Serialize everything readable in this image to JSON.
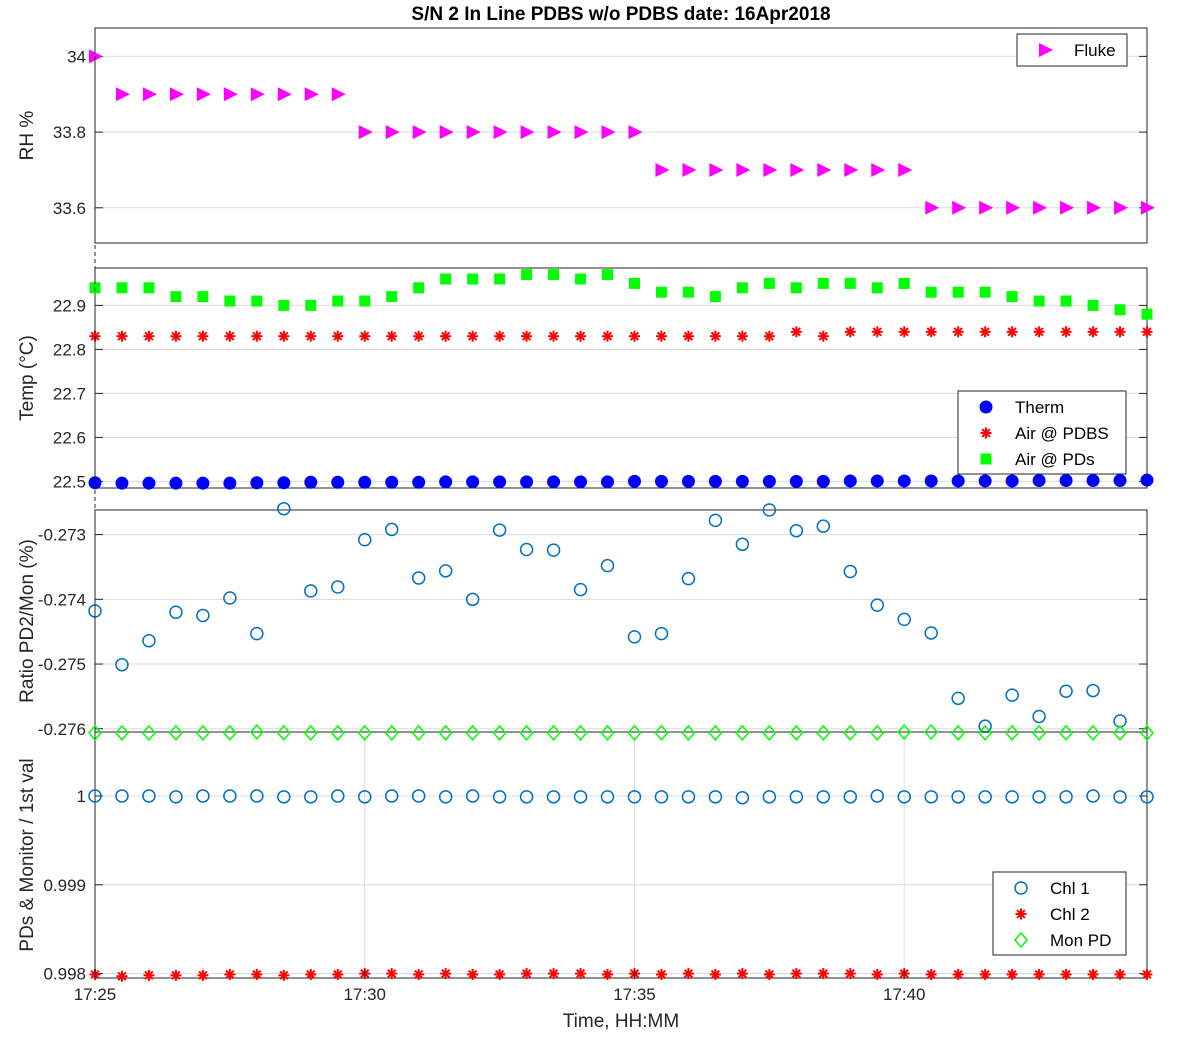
{
  "chart_data": {
    "title": "S/N 2 In Line PDBS w/o PDBS date: 16Apr2018",
    "xlabel": "Time, HH:MM",
    "time_minutes": [
      1045,
      1045.5,
      1046,
      1046.5,
      1047,
      1047.5,
      1048,
      1048.5,
      1049,
      1049.5,
      1050,
      1050.5,
      1051,
      1051.5,
      1052,
      1052.5,
      1053,
      1053.5,
      1054,
      1054.5,
      1055,
      1055.5,
      1056,
      1056.5,
      1057,
      1057.5,
      1058,
      1058.5,
      1059,
      1059.5,
      1060,
      1060.5,
      1061,
      1061.5,
      1062,
      1062.5,
      1063,
      1063.5,
      1064,
      1064.5
    ],
    "xticks": [
      {
        "t": 1045,
        "label": "17:25"
      },
      {
        "t": 1050,
        "label": "17:30"
      },
      {
        "t": 1055,
        "label": "17:35"
      },
      {
        "t": 1060,
        "label": "17:40"
      }
    ],
    "xlim": [
      1045,
      1064.5
    ],
    "panels": [
      {
        "id": "rh",
        "ylabel": "RH %",
        "ylim": [
          33.507,
          34.075
        ],
        "yticks": [
          {
            "v": 33.6,
            "label": "33.6"
          },
          {
            "v": 33.8,
            "label": "33.8"
          },
          {
            "v": 34,
            "label": "34"
          }
        ],
        "xgrid": false,
        "legend": "top-right",
        "series": [
          {
            "name": "Fluke",
            "marker": "triangle-right",
            "color": "#ff00ff",
            "values": [
              34,
              33.9,
              33.9,
              33.9,
              33.9,
              33.9,
              33.9,
              33.9,
              33.9,
              33.9,
              33.8,
              33.8,
              33.8,
              33.8,
              33.8,
              33.8,
              33.8,
              33.8,
              33.8,
              33.8,
              33.8,
              33.7,
              33.7,
              33.7,
              33.7,
              33.7,
              33.7,
              33.7,
              33.7,
              33.7,
              33.7,
              33.6,
              33.6,
              33.6,
              33.6,
              33.6,
              33.6,
              33.6,
              33.6,
              33.6
            ]
          }
        ]
      },
      {
        "id": "temp",
        "ylabel": "Temp (°C)",
        "ylim": [
          22.485,
          22.985
        ],
        "yticks": [
          {
            "v": 22.5,
            "label": "22.5"
          },
          {
            "v": 22.6,
            "label": "22.6"
          },
          {
            "v": 22.7,
            "label": "22.7"
          },
          {
            "v": 22.8,
            "label": "22.8"
          },
          {
            "v": 22.9,
            "label": "22.9"
          }
        ],
        "xgrid": false,
        "legend": "right",
        "series": [
          {
            "name": "Therm",
            "marker": "filled-circle",
            "color": "#0000ff",
            "values": [
              22.497,
              22.496,
              22.496,
              22.496,
              22.496,
              22.496,
              22.497,
              22.497,
              22.498,
              22.498,
              22.498,
              22.498,
              22.498,
              22.499,
              22.499,
              22.499,
              22.499,
              22.499,
              22.499,
              22.499,
              22.5,
              22.5,
              22.5,
              22.5,
              22.5,
              22.5,
              22.5,
              22.5,
              22.501,
              22.501,
              22.501,
              22.501,
              22.501,
              22.501,
              22.501,
              22.502,
              22.502,
              22.502,
              22.502,
              22.503
            ]
          },
          {
            "name": "Air @ PDBS",
            "marker": "asterisk",
            "color": "#ff0000",
            "values": [
              22.83,
              22.83,
              22.83,
              22.83,
              22.83,
              22.83,
              22.83,
              22.83,
              22.83,
              22.83,
              22.83,
              22.83,
              22.83,
              22.83,
              22.83,
              22.83,
              22.83,
              22.83,
              22.83,
              22.83,
              22.83,
              22.83,
              22.83,
              22.83,
              22.83,
              22.83,
              22.84,
              22.83,
              22.84,
              22.84,
              22.84,
              22.84,
              22.84,
              22.84,
              22.84,
              22.84,
              22.84,
              22.84,
              22.84,
              22.84
            ]
          },
          {
            "name": "Air @ PDs",
            "marker": "filled-square",
            "color": "#00ff00",
            "values": [
              22.94,
              22.94,
              22.94,
              22.92,
              22.92,
              22.91,
              22.91,
              22.9,
              22.9,
              22.91,
              22.91,
              22.92,
              22.94,
              22.96,
              22.96,
              22.96,
              22.97,
              22.97,
              22.96,
              22.97,
              22.95,
              22.93,
              22.93,
              22.92,
              22.94,
              22.95,
              22.94,
              22.95,
              22.95,
              22.94,
              22.95,
              22.93,
              22.93,
              22.93,
              22.92,
              22.91,
              22.91,
              22.9,
              22.89,
              22.88
            ]
          }
        ]
      },
      {
        "id": "ratio",
        "ylabel": "Ratio PD2/Mon (%)",
        "ylim": [
          -0.27605,
          -0.27262
        ],
        "yticks": [
          {
            "v": -0.276,
            "label": "-0.276"
          },
          {
            "v": -0.275,
            "label": "-0.275"
          },
          {
            "v": -0.274,
            "label": "-0.274"
          },
          {
            "v": -0.273,
            "label": "-0.273"
          }
        ],
        "xgrid": false,
        "legend": "",
        "series": [
          {
            "name": "",
            "marker": "open-circle",
            "color": "#0072bd",
            "values": [
              -0.27418,
              -0.27501,
              -0.27464,
              -0.2742,
              -0.27425,
              -0.27398,
              -0.27453,
              -0.2726,
              -0.27387,
              -0.27381,
              -0.27308,
              -0.27292,
              -0.27367,
              -0.27356,
              -0.274,
              -0.27293,
              -0.27323,
              -0.27324,
              -0.27385,
              -0.27348,
              -0.27458,
              -0.27453,
              -0.27368,
              -0.27278,
              -0.27315,
              -0.27262,
              -0.27294,
              -0.27287,
              -0.27357,
              -0.27409,
              -0.27431,
              -0.27452,
              -0.27553,
              -0.27596,
              -0.27548,
              -0.27581,
              -0.27542,
              -0.27541,
              -0.27588
            ]
          }
        ],
        "x_offset_index": 0
      },
      {
        "id": "pd",
        "ylabel": "PDs & Monitor / 1st val",
        "ylim": [
          0.99795,
          1.00072
        ],
        "yticks": [
          {
            "v": 0.998,
            "label": "0.998"
          },
          {
            "v": 0.999,
            "label": "0.999"
          },
          {
            "v": 1,
            "label": "1"
          }
        ],
        "xgrid": true,
        "legend": "bottom-right",
        "series": [
          {
            "name": "Chl 1",
            "marker": "open-circle",
            "color": "#0072bd",
            "values": [
              1,
              1,
              1,
              0.99999,
              1,
              1,
              1,
              0.99999,
              0.99999,
              1,
              0.99999,
              1,
              1,
              0.99999,
              1,
              0.99999,
              0.99999,
              0.99999,
              0.99999,
              0.99999,
              0.99999,
              0.99999,
              0.99999,
              0.99999,
              0.99998,
              0.99999,
              0.99999,
              0.99999,
              0.99999,
              1,
              0.99999,
              0.99999,
              0.99999,
              0.99999,
              0.99999,
              0.99999,
              0.99999,
              1,
              0.99999,
              0.99999
            ]
          },
          {
            "name": "Chl 2",
            "marker": "asterisk",
            "color": "#ff0000",
            "values": [
              0.99799,
              0.99797,
              0.99798,
              0.99798,
              0.99798,
              0.99799,
              0.99799,
              0.99798,
              0.99799,
              0.99799,
              0.998,
              0.998,
              0.99799,
              0.998,
              0.99799,
              0.99799,
              0.998,
              0.998,
              0.998,
              0.99799,
              0.998,
              0.99799,
              0.998,
              0.99799,
              0.998,
              0.99799,
              0.998,
              0.998,
              0.998,
              0.99799,
              0.998,
              0.99799,
              0.99799,
              0.99799,
              0.99799,
              0.99799,
              0.99799,
              0.99799,
              0.99799,
              0.99799
            ]
          },
          {
            "name": "Mon PD",
            "marker": "open-diamond",
            "color": "#00ff00",
            "values": [
              1.00071,
              1.00071,
              1.00071,
              1.00071,
              1.00071,
              1.00071,
              1.00072,
              1.00071,
              1.00071,
              1.00071,
              1.00071,
              1.00071,
              1.00071,
              1.00071,
              1.00071,
              1.00071,
              1.00071,
              1.00071,
              1.00071,
              1.00071,
              1.00071,
              1.00071,
              1.00071,
              1.00071,
              1.00071,
              1.00071,
              1.00071,
              1.00071,
              1.00071,
              1.00071,
              1.00072,
              1.00072,
              1.00071,
              1.00071,
              1.00071,
              1.00071,
              1.00071,
              1.00071,
              1.00071,
              1.00071
            ]
          }
        ]
      }
    ]
  }
}
